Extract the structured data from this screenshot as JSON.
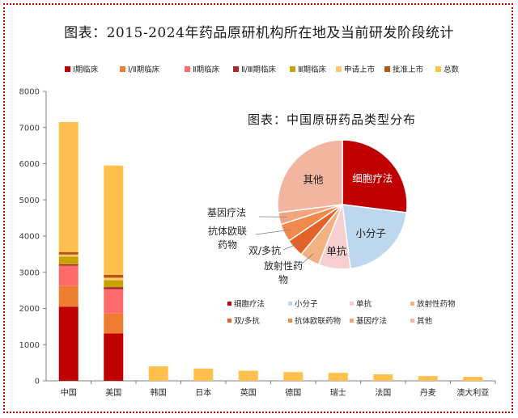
{
  "title": "图表：2015-2024年药品原研机构所在地及当前研发阶段统计",
  "colors": {
    "phase1": "#c00000",
    "phase12": "#ed7d31",
    "phase2": "#ff6b6b",
    "phase23": "#a52a2a",
    "phase3": "#c9a200",
    "apply": "#ffc870",
    "approved": "#b8570b",
    "total": "#ffc04d"
  },
  "chart_data": [
    {
      "type": "bar",
      "categories": [
        "中国",
        "美国",
        "韩国",
        "日本",
        "英国",
        "德国",
        "瑞士",
        "法国",
        "丹麦",
        "澳大利亚"
      ],
      "ylim": [
        0,
        8000
      ],
      "yticks": [
        0,
        1000,
        2000,
        3000,
        4000,
        5000,
        6000,
        7000,
        8000
      ],
      "legend_position": "top",
      "series": [
        {
          "name": "Ⅰ期临床",
          "key": "phase1",
          "values": [
            2050,
            1310,
            null,
            null,
            null,
            null,
            null,
            null,
            null,
            null
          ]
        },
        {
          "name": "Ⅰ/Ⅱ期临床",
          "key": "phase12",
          "values": [
            570,
            550,
            null,
            null,
            null,
            null,
            null,
            null,
            null,
            null
          ]
        },
        {
          "name": "Ⅱ期临床",
          "key": "phase2",
          "values": [
            560,
            670,
            null,
            null,
            null,
            null,
            null,
            null,
            null,
            null
          ]
        },
        {
          "name": "Ⅱ/Ⅲ期临床",
          "key": "phase23",
          "values": [
            40,
            60,
            null,
            null,
            null,
            null,
            null,
            null,
            null,
            null
          ]
        },
        {
          "name": "Ⅲ期临床",
          "key": "phase3",
          "values": [
            210,
            190,
            null,
            null,
            null,
            null,
            null,
            null,
            null,
            null
          ]
        },
        {
          "name": "申请上市",
          "key": "apply",
          "values": [
            60,
            70,
            null,
            null,
            null,
            null,
            null,
            null,
            null,
            null
          ]
        },
        {
          "name": "批准上市",
          "key": "approved",
          "values": [
            70,
            80,
            null,
            null,
            null,
            null,
            null,
            null,
            null,
            null
          ]
        },
        {
          "name": "总数",
          "key": "total",
          "values": [
            7150,
            5950,
            400,
            340,
            280,
            240,
            220,
            180,
            130,
            110
          ]
        }
      ]
    },
    {
      "type": "pie",
      "title": "图表：中国原研药品类型分布",
      "legend_position": "bottom",
      "slices": [
        {
          "label": "细胞疗法",
          "value": 27,
          "color": "#c00000",
          "text_color": "#ffffff"
        },
        {
          "label": "小分子",
          "value": 21,
          "color": "#bdd7ee",
          "text_color": "#1a1a1a"
        },
        {
          "label": "单抗",
          "value": 8,
          "color": "#f8cfd0",
          "text_color": "#1a1a1a"
        },
        {
          "label": "放射性药物",
          "value": 5,
          "color": "#f4b183",
          "text_color": "#1a1a1a"
        },
        {
          "label": "双/多抗",
          "value": 4.5,
          "color": "#e3622a",
          "text_color": "#1a1a1a"
        },
        {
          "label": "抗体欧联药物",
          "value": 4.5,
          "color": "#f08a4b",
          "text_color": "#1a1a1a"
        },
        {
          "label": "基因疗法",
          "value": 3,
          "color": "#f4a57f",
          "text_color": "#1a1a1a"
        },
        {
          "label": "其他",
          "value": 27,
          "color": "#f2b6a0",
          "text_color": "#1a1a1a"
        }
      ]
    }
  ]
}
